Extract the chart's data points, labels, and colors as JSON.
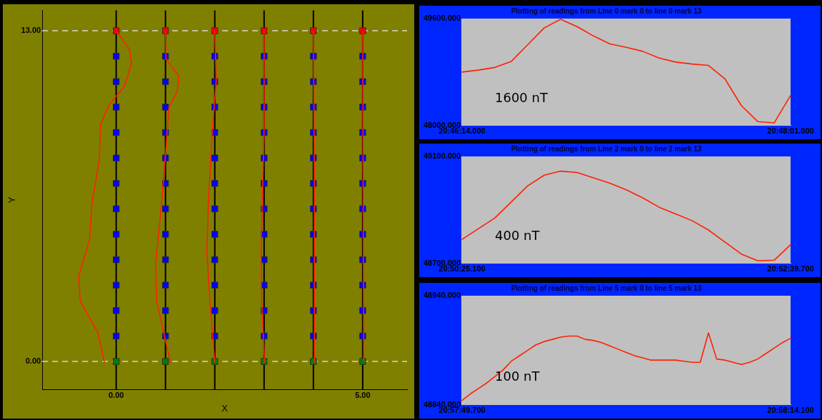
{
  "chart_data": [
    {
      "type": "line",
      "xlabel": "X",
      "ylabel": "Y",
      "xlim": [
        -1.5,
        5.9
      ],
      "ylim": [
        -1.1,
        13.8
      ],
      "xticks": [
        {
          "value": 0,
          "label": "0.00"
        },
        {
          "value": 5,
          "label": "5.00"
        }
      ],
      "yticks": [
        {
          "value": 0,
          "label": "0.00"
        },
        {
          "value": 13,
          "label": "13.00"
        }
      ],
      "ref_lines": [
        {
          "axis": "y",
          "value": 0,
          "color": "#c0c0a0",
          "line_style": "dashed"
        },
        {
          "axis": "y",
          "value": 13,
          "color": "#c0c0a0",
          "line_style": "dashed"
        },
        {
          "axis": "x",
          "value": 0,
          "color": "#000000"
        },
        {
          "axis": "x",
          "value": 1,
          "color": "#000000"
        },
        {
          "axis": "x",
          "value": 2,
          "color": "#000000"
        },
        {
          "axis": "x",
          "value": 3,
          "color": "#000000"
        },
        {
          "axis": "x",
          "value": 4,
          "color": "#000000"
        },
        {
          "axis": "x",
          "value": 5,
          "color": "#000000"
        }
      ],
      "series": [
        {
          "type": "scatter",
          "color": "#0000ff",
          "marker": "square",
          "x": [
            0,
            0,
            0,
            0,
            0,
            0,
            0,
            0,
            0,
            0,
            0,
            0,
            0,
            0
          ],
          "values": [
            0,
            1,
            2,
            3,
            4,
            5,
            6,
            7,
            8,
            9,
            10,
            11,
            12,
            13
          ],
          "colors": [
            "#008000",
            "#0000ff",
            "#0000ff",
            "#0000ff",
            "#0000ff",
            "#0000ff",
            "#0000ff",
            "#0000ff",
            "#0000ff",
            "#0000ff",
            "#0000ff",
            "#0000ff",
            "#0000ff",
            "#ff0000"
          ]
        },
        {
          "type": "scatter",
          "color": "#0000ff",
          "marker": "square",
          "x": [
            1,
            1,
            1,
            1,
            1,
            1,
            1,
            1,
            1,
            1,
            1,
            1,
            1,
            1
          ],
          "values": [
            0,
            1,
            2,
            3,
            4,
            5,
            6,
            7,
            8,
            9,
            10,
            11,
            12,
            13
          ],
          "colors": [
            "#008000",
            "#0000ff",
            "#0000ff",
            "#0000ff",
            "#0000ff",
            "#0000ff",
            "#0000ff",
            "#0000ff",
            "#0000ff",
            "#0000ff",
            "#0000ff",
            "#0000ff",
            "#0000ff",
            "#ff0000"
          ]
        },
        {
          "type": "scatter",
          "color": "#0000ff",
          "marker": "square",
          "x": [
            2,
            2,
            2,
            2,
            2,
            2,
            2,
            2,
            2,
            2,
            2,
            2,
            2,
            2
          ],
          "values": [
            0,
            1,
            2,
            3,
            4,
            5,
            6,
            7,
            8,
            9,
            10,
            11,
            12,
            13
          ],
          "colors": [
            "#008000",
            "#0000ff",
            "#0000ff",
            "#0000ff",
            "#0000ff",
            "#0000ff",
            "#0000ff",
            "#0000ff",
            "#0000ff",
            "#0000ff",
            "#0000ff",
            "#0000ff",
            "#0000ff",
            "#ff0000"
          ]
        },
        {
          "type": "scatter",
          "color": "#0000ff",
          "marker": "square",
          "x": [
            3,
            3,
            3,
            3,
            3,
            3,
            3,
            3,
            3,
            3,
            3,
            3,
            3,
            3
          ],
          "values": [
            0,
            1,
            2,
            3,
            4,
            5,
            6,
            7,
            8,
            9,
            10,
            11,
            12,
            13
          ],
          "colors": [
            "#008000",
            "#0000ff",
            "#0000ff",
            "#0000ff",
            "#0000ff",
            "#0000ff",
            "#0000ff",
            "#0000ff",
            "#0000ff",
            "#0000ff",
            "#0000ff",
            "#0000ff",
            "#0000ff",
            "#ff0000"
          ]
        },
        {
          "type": "scatter",
          "color": "#0000ff",
          "marker": "square",
          "x": [
            4,
            4,
            4,
            4,
            4,
            4,
            4,
            4,
            4,
            4,
            4,
            4,
            4,
            4
          ],
          "values": [
            0,
            1,
            2,
            3,
            4,
            5,
            6,
            7,
            8,
            9,
            10,
            11,
            12,
            13
          ],
          "colors": [
            "#008000",
            "#0000ff",
            "#0000ff",
            "#0000ff",
            "#0000ff",
            "#0000ff",
            "#0000ff",
            "#0000ff",
            "#0000ff",
            "#0000ff",
            "#0000ff",
            "#0000ff",
            "#0000ff",
            "#ff0000"
          ]
        },
        {
          "type": "scatter",
          "color": "#0000ff",
          "marker": "square",
          "x": [
            5,
            5,
            5,
            5,
            5,
            5,
            5,
            5,
            5,
            5,
            5,
            5,
            5,
            5
          ],
          "values": [
            0,
            1,
            2,
            3,
            4,
            5,
            6,
            7,
            8,
            9,
            10,
            11,
            12,
            13
          ],
          "colors": [
            "#008000",
            "#0000ff",
            "#0000ff",
            "#0000ff",
            "#0000ff",
            "#0000ff",
            "#0000ff",
            "#0000ff",
            "#0000ff",
            "#0000ff",
            "#0000ff",
            "#0000ff",
            "#0000ff",
            "#ff0000"
          ]
        },
        {
          "color": "#ff2000",
          "marker": "none",
          "x": [
            0.02,
            0.27,
            0.31,
            0.17,
            -0.15,
            -0.32,
            -0.34,
            -0.49,
            -0.54,
            -0.76,
            -0.73,
            -0.37,
            -0.24
          ],
          "values": [
            12.95,
            12.27,
            11.7,
            10.83,
            10.07,
            9.29,
            7.95,
            6.23,
            4.78,
            3.34,
            2.38,
            1.13,
            -0.03
          ]
        },
        {
          "color": "#ff2000",
          "marker": "none",
          "x": [
            1.0,
            1.01,
            1.27,
            1.24,
            1.07,
            1.0,
            0.92,
            0.8,
            0.82,
            1.1
          ],
          "values": [
            12.95,
            11.89,
            11.22,
            10.64,
            9.97,
            8.14,
            6.22,
            3.82,
            2.38,
            -0.03
          ]
        },
        {
          "color": "#ff2000",
          "marker": "none",
          "x": [
            2.0,
            2.03,
            1.95,
            1.87,
            1.84,
            1.9,
            2.0
          ],
          "values": [
            12.95,
            11.03,
            9.11,
            6.23,
            4.31,
            2.38,
            -0.03
          ]
        },
        {
          "color": "#ff2000",
          "marker": "none",
          "x": [
            3.0,
            3.0,
            2.97,
            2.94,
            2.95,
            3.01
          ],
          "values": [
            12.95,
            9.11,
            6.7,
            4.31,
            2.38,
            -0.03
          ]
        },
        {
          "color": "#ff2000",
          "marker": "none",
          "x": [
            4.0,
            4.02,
            4.02
          ],
          "values": [
            12.95,
            7.19,
            -0.03
          ]
        },
        {
          "color": "#ff2000",
          "marker": "none",
          "x": [
            5.0,
            5.01,
            5.02
          ],
          "values": [
            12.95,
            6.23,
            -0.03
          ]
        }
      ]
    },
    {
      "type": "line",
      "title": "Plotting of readings from Line 0 mark 0 to line 0 mark 13",
      "annotations": [
        "1600 nT"
      ],
      "ylim": [
        48000,
        49600
      ],
      "yticks": [
        {
          "value": 48000,
          "label": "48000.000"
        },
        {
          "value": 49600,
          "label": "49600.000"
        }
      ],
      "categories": [
        "20:46:14.000",
        null,
        null,
        null,
        null,
        null,
        null,
        null,
        null,
        null,
        null,
        null,
        null,
        null,
        null,
        null,
        null,
        null,
        null,
        null,
        "20:48:01.000"
      ],
      "series": [
        {
          "color": "#ff2000",
          "values": [
            48800,
            48830,
            48870,
            48960,
            49210,
            49460,
            49590,
            49480,
            49340,
            49220,
            49170,
            49110,
            49010,
            48950,
            48920,
            48900,
            48700,
            48300,
            48060,
            48040,
            48450
          ]
        }
      ]
    },
    {
      "type": "line",
      "title": "Plotting of readings from Line 2 mark 0 to line 2 mark 13",
      "annotations": [
        "400 nT"
      ],
      "ylim": [
        48700,
        49100
      ],
      "yticks": [
        {
          "value": 48700,
          "label": "48700.000"
        },
        {
          "value": 49100,
          "label": "49100.000"
        }
      ],
      "categories": [
        "20:50:25.100",
        null,
        null,
        null,
        null,
        null,
        null,
        null,
        null,
        null,
        null,
        null,
        null,
        null,
        null,
        null,
        null,
        null,
        null,
        null,
        "20:52:39.700"
      ],
      "series": [
        {
          "color": "#ff2000",
          "values": [
            48790,
            48830,
            48870,
            48930,
            48990,
            49030,
            49045,
            49040,
            49020,
            49000,
            48975,
            48945,
            48910,
            48885,
            48860,
            48825,
            48780,
            48735,
            48710,
            48712,
            48770
          ]
        }
      ]
    },
    {
      "type": "line",
      "title": "Plotting of readings from Line 5 mark 0 to line 5 mark 13",
      "annotations": [
        "100 nT"
      ],
      "ylim": [
        48840,
        48940
      ],
      "yticks": [
        {
          "value": 48840,
          "label": "48840.000"
        },
        {
          "value": 48940,
          "label": "48940.000"
        }
      ],
      "categories": [
        "20:57:49.700",
        null,
        null,
        null,
        null,
        null,
        null,
        null,
        null,
        null,
        null,
        null,
        null,
        null,
        null,
        null,
        null,
        null,
        null,
        null,
        null,
        null,
        null,
        null,
        null,
        null,
        null,
        null,
        null,
        null,
        null,
        null,
        null,
        null,
        null,
        null,
        null,
        null,
        null,
        null,
        "20:58:14.100"
      ],
      "series": [
        {
          "color": "#ff2000",
          "values": [
            48844,
            48850,
            48855,
            48860,
            48866,
            48872,
            48880,
            48885,
            48890,
            48895,
            48898,
            48900,
            48902,
            48903,
            48903,
            48900,
            48899,
            48897,
            48894,
            48891,
            48888,
            48885,
            48883,
            48881,
            48881,
            48881,
            48881,
            48880,
            48879,
            48879,
            48906,
            48882,
            48881,
            48879,
            48877,
            48879,
            48882,
            48887,
            48892,
            48897,
            48901
          ]
        }
      ]
    }
  ]
}
